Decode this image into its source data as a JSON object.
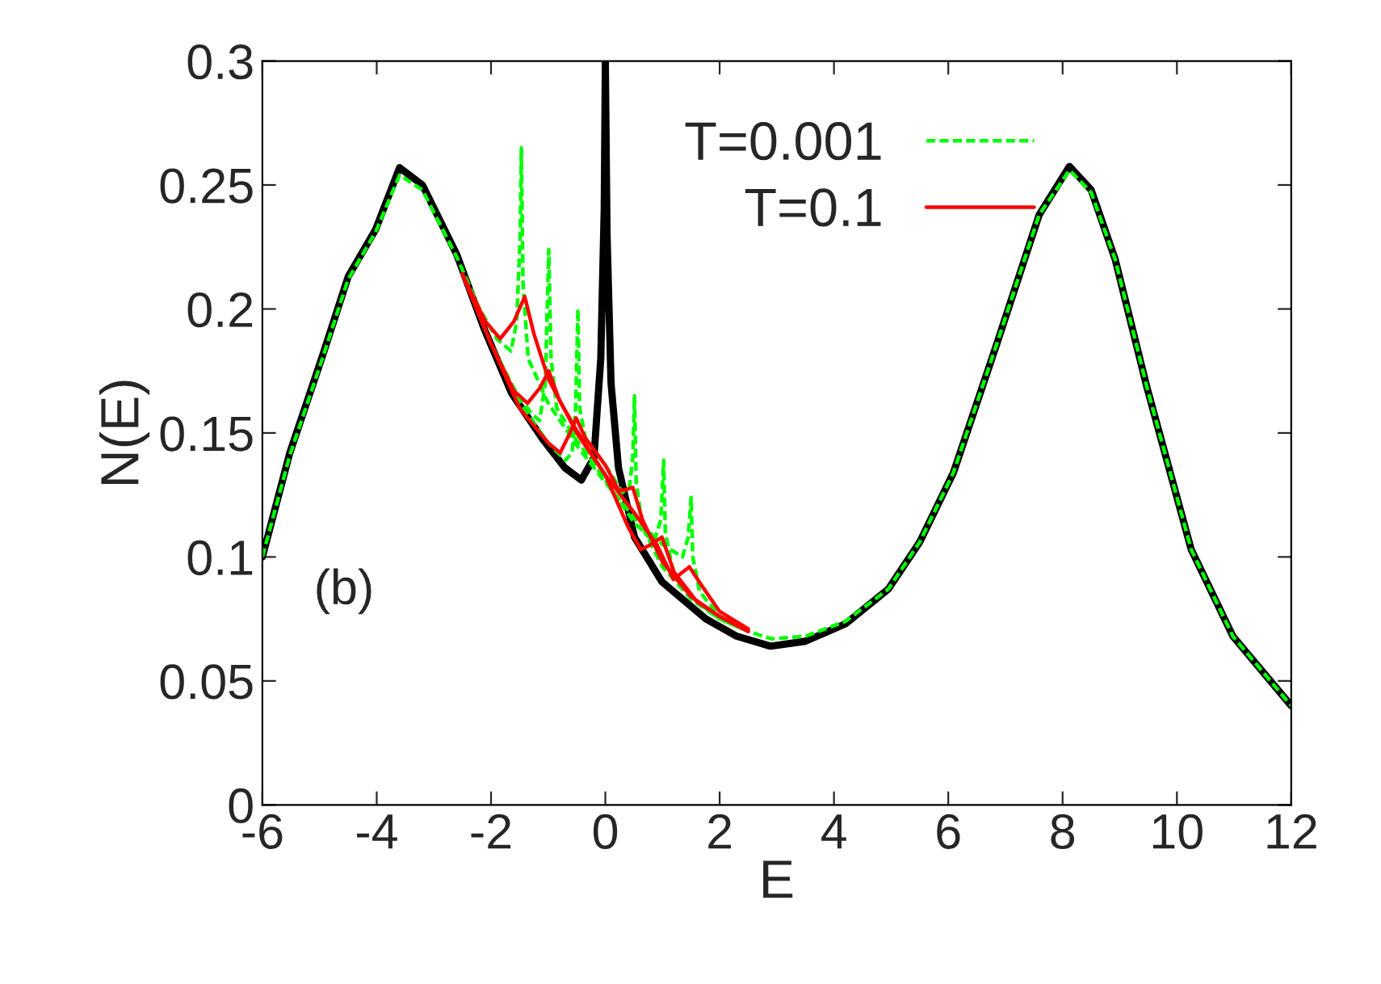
{
  "chart_data": {
    "type": "line",
    "xlabel": "E",
    "ylabel": "N(E)",
    "xlim": [
      -6,
      12
    ],
    "xticks": [
      -6,
      -4,
      -2,
      0,
      2,
      4,
      6,
      8,
      10,
      12
    ],
    "ylim": [
      0,
      0.3
    ],
    "yticks": [
      0,
      0.05,
      0.1,
      0.15,
      0.2,
      0.25,
      0.3
    ],
    "grid": false,
    "legend": "top",
    "annotations": [
      "(b)"
    ],
    "series": [
      {
        "color": "#000000",
        "line_style": "solid",
        "x": [
          -6,
          -5.52,
          -4.95,
          -4.5,
          -4.02,
          -3.6,
          -3.2,
          -2.6,
          -2.12,
          -1.64,
          -1.08,
          -0.71,
          -0.42,
          -0.2,
          -0.08,
          -0.02,
          0,
          0.03,
          0.1,
          0.23,
          0.51,
          0.99,
          1.76,
          2.3,
          2.89,
          3.5,
          4.2,
          4.95,
          5.5,
          6.09,
          6.85,
          7.59,
          8.12,
          8.5,
          8.92,
          9.48,
          10.25,
          10.98,
          12
        ],
        "values": [
          0.1,
          0.142,
          0.181,
          0.213,
          0.232,
          0.257,
          0.25,
          0.222,
          0.192,
          0.166,
          0.147,
          0.136,
          0.131,
          0.14,
          0.18,
          0.24,
          0.3,
          0.23,
          0.17,
          0.136,
          0.108,
          0.09,
          0.075,
          0.068,
          0.064,
          0.066,
          0.073,
          0.087,
          0.106,
          0.134,
          0.186,
          0.238,
          0.2575,
          0.248,
          0.22,
          0.168,
          0.103,
          0.068,
          0.04
        ]
      },
      {
        "name": "T=0.001",
        "color": "#00ff00",
        "line_style": "dashed",
        "x": [
          -6,
          -5.52,
          -4.95,
          -4.5,
          -4.02,
          -3.6,
          -3.2,
          -2.6,
          -2.2,
          -1.9,
          -1.65,
          -1.55,
          -1.49,
          -1.47,
          -1.44,
          -1.35,
          -1.0,
          -0.5,
          0,
          0.5,
          1.0,
          1.35,
          1.45,
          1.5,
          1.53,
          1.65,
          2.0,
          2.5,
          2.9,
          3.5,
          4.2,
          4.95,
          5.5,
          6.09,
          6.85,
          7.59,
          8.12,
          8.5,
          8.92,
          9.48,
          10.25,
          10.98,
          12
        ],
        "values": [
          0.1,
          0.141,
          0.18,
          0.212,
          0.231,
          0.254,
          0.248,
          0.221,
          0.2,
          0.188,
          0.183,
          0.195,
          0.23,
          0.265,
          0.21,
          0.18,
          0.162,
          0.145,
          0.13,
          0.116,
          0.105,
          0.1,
          0.108,
          0.124,
          0.1,
          0.086,
          0.076,
          0.07,
          0.067,
          0.068,
          0.074,
          0.087,
          0.106,
          0.134,
          0.186,
          0.238,
          0.256,
          0.247,
          0.22,
          0.168,
          0.103,
          0.068,
          0.04
        ]
      },
      {
        "color": "#00ff00",
        "line_style": "dashed",
        "x": [
          -2.5,
          -2.0,
          -1.6,
          -1.3,
          -1.15,
          -1.05,
          -0.99,
          -0.95,
          -0.85,
          -0.5,
          0,
          0.5,
          0.85,
          0.97,
          1.02,
          1.05,
          1.2,
          1.6,
          2.0,
          2.5
        ],
        "values": [
          0.214,
          0.186,
          0.168,
          0.158,
          0.155,
          0.17,
          0.224,
          0.18,
          0.16,
          0.147,
          0.131,
          0.114,
          0.106,
          0.115,
          0.139,
          0.11,
          0.092,
          0.082,
          0.075,
          0.07
        ]
      },
      {
        "color": "#00ff00",
        "line_style": "dashed",
        "x": [
          -2.5,
          -2.0,
          -1.5,
          -1.0,
          -0.7,
          -0.58,
          -0.52,
          -0.48,
          -0.45,
          -0.35,
          0,
          0.3,
          0.42,
          0.48,
          0.51,
          0.54,
          0.65,
          1.0,
          1.5,
          2.0,
          2.5
        ],
        "values": [
          0.214,
          0.186,
          0.162,
          0.146,
          0.139,
          0.142,
          0.16,
          0.2,
          0.16,
          0.148,
          0.137,
          0.126,
          0.128,
          0.14,
          0.165,
          0.13,
          0.112,
          0.096,
          0.083,
          0.075,
          0.07
        ]
      },
      {
        "name": "T=0.1",
        "color": "#ff0000",
        "line_style": "solid",
        "x": [
          -2.5,
          -2.1,
          -1.84,
          -1.6,
          -1.41,
          -1.25,
          -1.0,
          -0.5,
          0,
          0.5,
          0.9,
          1.19,
          1.47,
          1.7,
          2.0,
          2.5
        ],
        "values": [
          0.214,
          0.195,
          0.188,
          0.195,
          0.205,
          0.19,
          0.172,
          0.15,
          0.133,
          0.118,
          0.105,
          0.091,
          0.096,
          0.088,
          0.078,
          0.071
        ]
      },
      {
        "color": "#ff0000",
        "line_style": "solid",
        "x": [
          -2.5,
          -2.0,
          -1.6,
          -1.36,
          -1.15,
          -0.99,
          -0.8,
          -0.5,
          0,
          0.4,
          0.62,
          0.8,
          0.99,
          1.2,
          1.6,
          2.0,
          2.5
        ],
        "values": [
          0.214,
          0.186,
          0.167,
          0.162,
          0.168,
          0.175,
          0.163,
          0.151,
          0.133,
          0.112,
          0.103,
          0.105,
          0.108,
          0.094,
          0.082,
          0.076,
          0.07
        ]
      },
      {
        "color": "#ff0000",
        "line_style": "solid",
        "x": [
          -2.5,
          -2.0,
          -1.5,
          -1.0,
          -0.79,
          -0.62,
          -0.51,
          -0.35,
          0,
          0.23,
          0.35,
          0.48,
          0.65,
          1.0,
          1.5,
          2.0,
          2.5
        ],
        "values": [
          0.214,
          0.186,
          0.16,
          0.146,
          0.142,
          0.15,
          0.156,
          0.148,
          0.137,
          0.127,
          0.127,
          0.128,
          0.115,
          0.098,
          0.084,
          0.076,
          0.07
        ]
      }
    ]
  }
}
